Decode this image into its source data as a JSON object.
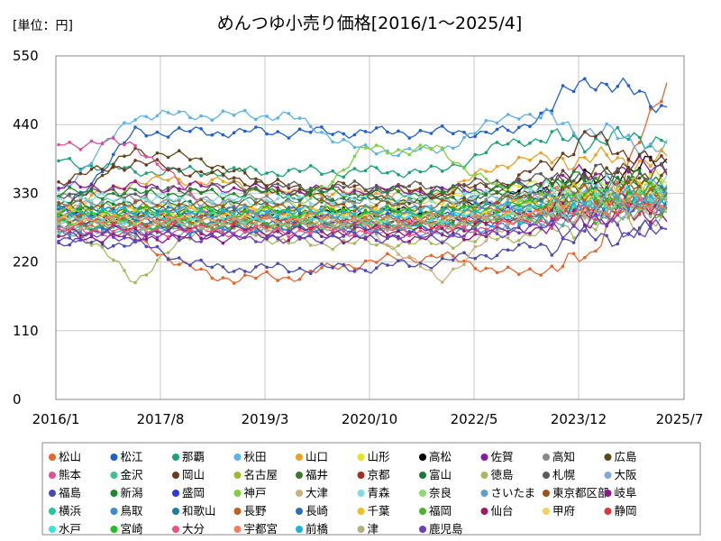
{
  "chart_data": {
    "type": "line",
    "title": "めんつゆ小売り価格[2016/1～2025/4]",
    "unit_label": "[単位：円]",
    "xlabel": "",
    "ylabel": "",
    "ylim": [
      0,
      550
    ],
    "y_ticks": [
      0,
      110,
      220,
      330,
      440,
      550
    ],
    "x_ticks": [
      "2016/1",
      "2017/8",
      "2019/3",
      "2020/10",
      "2022/5",
      "2023/12",
      "2025/7"
    ],
    "grid": true,
    "legend_placement": "bottom",
    "series": [
      {
        "name": "松山",
        "color": "#e8662c",
        "values": [
          305,
          255,
          195,
          195,
          220,
          230,
          200,
          225,
          515
        ]
      },
      {
        "name": "松江",
        "color": "#1f5fd1",
        "values": [
          290,
          428,
          428,
          428,
          428,
          428,
          428,
          515,
          470
        ]
      },
      {
        "name": "那覇",
        "color": "#1aa37a",
        "values": [
          382,
          365,
          365,
          365,
          365,
          365,
          415,
          415,
          420
        ]
      },
      {
        "name": "秋田",
        "color": "#5cb3e8",
        "values": [
          330,
          455,
          455,
          455,
          398,
          398,
          460,
          430,
          400
        ]
      },
      {
        "name": "山口",
        "color": "#f0a020",
        "values": [
          300,
          350,
          350,
          330,
          330,
          330,
          385,
          385,
          380
        ]
      },
      {
        "name": "山形",
        "color": "#e8e020",
        "values": [
          310,
          310,
          310,
          310,
          310,
          320,
          340,
          345,
          350
        ]
      },
      {
        "name": "高松",
        "color": "#000000",
        "values": [
          295,
          290,
          295,
          295,
          300,
          300,
          330,
          350,
          380
        ]
      },
      {
        "name": "佐賀",
        "color": "#8a1aa0",
        "values": [
          340,
          340,
          340,
          335,
          335,
          335,
          340,
          360,
          375
        ]
      },
      {
        "name": "高知",
        "color": "#888888",
        "values": [
          320,
          320,
          320,
          320,
          320,
          320,
          320,
          340,
          340
        ]
      },
      {
        "name": "広島",
        "color": "#5a4a1a",
        "values": [
          300,
          400,
          380,
          330,
          320,
          320,
          330,
          360,
          360
        ]
      },
      {
        "name": "熊本",
        "color": "#e0509a",
        "values": [
          410,
          410,
          300,
          300,
          280,
          280,
          320,
          330,
          330
        ]
      },
      {
        "name": "金沢",
        "color": "#40c090",
        "values": [
          270,
          270,
          280,
          280,
          280,
          280,
          300,
          310,
          330
        ]
      },
      {
        "name": "岡山",
        "color": "#6a3a1a",
        "values": [
          350,
          380,
          360,
          340,
          340,
          330,
          350,
          420,
          370
        ]
      },
      {
        "name": "名古屋",
        "color": "#a0b830",
        "values": [
          290,
          290,
          290,
          290,
          290,
          290,
          300,
          320,
          330
        ]
      },
      {
        "name": "福井",
        "color": "#3a7a2a",
        "values": [
          300,
          300,
          300,
          300,
          300,
          300,
          320,
          340,
          340
        ]
      },
      {
        "name": "京都",
        "color": "#a0301a",
        "values": [
          290,
          285,
          280,
          280,
          285,
          285,
          300,
          320,
          330
        ]
      },
      {
        "name": "富山",
        "color": "#1a7a3a",
        "values": [
          310,
          310,
          310,
          320,
          320,
          320,
          330,
          340,
          345
        ]
      },
      {
        "name": "徳島",
        "color": "#a8b860",
        "values": [
          300,
          190,
          290,
          250,
          250,
          250,
          260,
          280,
          290
        ]
      },
      {
        "name": "札幌",
        "color": "#5a5a5a",
        "values": [
          330,
          330,
          340,
          340,
          340,
          340,
          350,
          360,
          360
        ]
      },
      {
        "name": "大阪",
        "color": "#80a8d8",
        "values": [
          310,
          310,
          310,
          310,
          310,
          310,
          320,
          330,
          335
        ]
      },
      {
        "name": "福島",
        "color": "#4a4ab0",
        "values": [
          250,
          250,
          210,
          210,
          210,
          220,
          240,
          260,
          270
        ]
      },
      {
        "name": "新潟",
        "color": "#1a8a2a",
        "values": [
          330,
          330,
          330,
          330,
          330,
          330,
          340,
          350,
          350
        ]
      },
      {
        "name": "盛岡",
        "color": "#2a3ad8",
        "values": [
          300,
          290,
          290,
          290,
          290,
          290,
          300,
          310,
          320
        ]
      },
      {
        "name": "神戸",
        "color": "#80d040",
        "values": [
          285,
          285,
          285,
          285,
          400,
          400,
          320,
          330,
          330
        ]
      },
      {
        "name": "大津",
        "color": "#c8b080",
        "values": [
          290,
          280,
          280,
          280,
          280,
          190,
          290,
          310,
          320
        ]
      },
      {
        "name": "青森",
        "color": "#80dce0",
        "values": [
          320,
          320,
          320,
          320,
          320,
          320,
          330,
          340,
          340
        ]
      },
      {
        "name": "奈良",
        "color": "#90d870",
        "values": [
          300,
          300,
          300,
          300,
          300,
          300,
          310,
          320,
          330
        ]
      },
      {
        "name": "さいたま",
        "color": "#5aa0c8",
        "values": [
          270,
          270,
          270,
          270,
          270,
          270,
          280,
          300,
          310
        ]
      },
      {
        "name": "東京都区部",
        "color": "#a0501a",
        "values": [
          310,
          310,
          310,
          310,
          310,
          310,
          320,
          330,
          340
        ]
      },
      {
        "name": "岐阜",
        "color": "#8a1a8a",
        "values": [
          260,
          260,
          260,
          260,
          260,
          260,
          270,
          290,
          300
        ]
      },
      {
        "name": "横浜",
        "color": "#20c8a0",
        "values": [
          280,
          280,
          280,
          280,
          280,
          280,
          290,
          310,
          320
        ]
      },
      {
        "name": "鳥取",
        "color": "#3a8ad8",
        "values": [
          270,
          270,
          270,
          270,
          270,
          270,
          280,
          300,
          310
        ]
      },
      {
        "name": "和歌山",
        "color": "#1a80a0",
        "values": [
          300,
          300,
          300,
          300,
          300,
          300,
          310,
          320,
          330
        ]
      },
      {
        "name": "長野",
        "color": "#c06020",
        "values": [
          290,
          290,
          290,
          290,
          290,
          290,
          300,
          310,
          320
        ]
      },
      {
        "name": "長崎",
        "color": "#2a70b8",
        "values": [
          280,
          280,
          280,
          280,
          280,
          280,
          290,
          300,
          310
        ]
      },
      {
        "name": "千葉",
        "color": "#f0c020",
        "values": [
          300,
          300,
          300,
          300,
          300,
          300,
          310,
          330,
          340
        ]
      },
      {
        "name": "福岡",
        "color": "#50b030",
        "values": [
          280,
          280,
          280,
          280,
          280,
          280,
          290,
          300,
          310
        ]
      },
      {
        "name": "仙台",
        "color": "#a01a60",
        "values": [
          270,
          270,
          270,
          270,
          270,
          270,
          290,
          310,
          320
        ]
      },
      {
        "name": "甲府",
        "color": "#f0d060",
        "values": [
          290,
          290,
          290,
          290,
          290,
          290,
          300,
          320,
          330
        ]
      },
      {
        "name": "静岡",
        "color": "#d83a3a",
        "values": [
          280,
          280,
          280,
          280,
          280,
          280,
          290,
          300,
          310
        ]
      },
      {
        "name": "水戸",
        "color": "#40e0e0",
        "values": [
          290,
          290,
          290,
          290,
          290,
          290,
          300,
          310,
          320
        ]
      },
      {
        "name": "宮崎",
        "color": "#20c020",
        "values": [
          300,
          300,
          300,
          300,
          300,
          300,
          310,
          320,
          330
        ]
      },
      {
        "name": "大分",
        "color": "#f05080",
        "values": [
          270,
          270,
          270,
          270,
          270,
          270,
          280,
          300,
          310
        ]
      },
      {
        "name": "宇都宮",
        "color": "#f08060",
        "values": [
          290,
          290,
          290,
          290,
          290,
          290,
          300,
          310,
          320
        ]
      },
      {
        "name": "前橋",
        "color": "#20b0d8",
        "values": [
          300,
          300,
          300,
          300,
          300,
          300,
          310,
          320,
          330
        ]
      },
      {
        "name": "津",
        "color": "#b0b080",
        "values": [
          280,
          280,
          280,
          280,
          280,
          280,
          290,
          300,
          310
        ]
      },
      {
        "name": "鹿児島",
        "color": "#6a40c0",
        "values": [
          260,
          260,
          260,
          260,
          260,
          260,
          270,
          280,
          270
        ]
      }
    ]
  }
}
